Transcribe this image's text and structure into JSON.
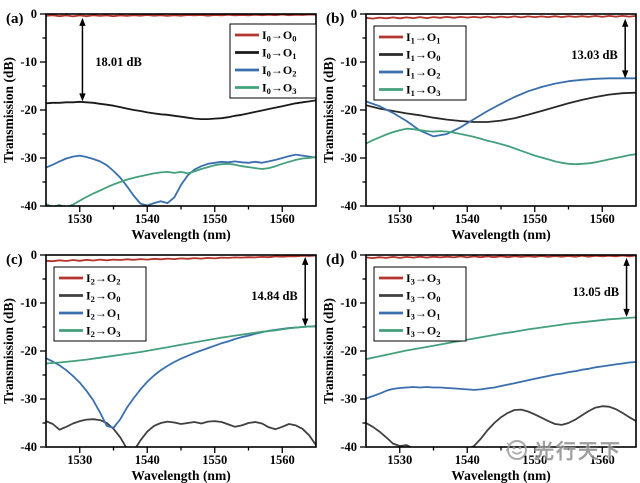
{
  "figure": {
    "background": "#ffffff",
    "watermark": {
      "text": "光行天下",
      "logo": "smiley-circle-icon",
      "color": "#8f8f8f"
    }
  },
  "chart_data": [
    {
      "type": "line",
      "panel_label": "(a)",
      "xlabel": "Wavelength (nm)",
      "ylabel": "Transmission (dB)",
      "xlim": [
        1525,
        1565
      ],
      "ylim": [
        -40,
        0
      ],
      "x_ticks": [
        1530,
        1540,
        1550,
        1560
      ],
      "x_minor_ticks": [
        1535,
        1545,
        1555
      ],
      "y_ticks": [
        0,
        -10,
        -20,
        -30,
        -40
      ],
      "y_minor_ticks": [
        -5,
        -15,
        -25,
        -35
      ],
      "grid": false,
      "legend_position": "top-right",
      "annotation": {
        "text": "18.01 dB",
        "arrow_x_nm": 1530.4,
        "arrow_from_db": -0.8,
        "arrow_to_db": -18.2,
        "text_x_nm": 1532.3,
        "text_y_db": -10,
        "text_anchor": "start"
      },
      "series": [
        {
          "name": "I0→O0",
          "in_base": "I",
          "in_sub": "0",
          "out_base": "O",
          "out_sub": "0",
          "color": "#b5342c",
          "x_start": 1525,
          "x_step": 1,
          "y": [
            -0.4,
            -0.25,
            -0.45,
            -0.3,
            -0.5,
            -0.3,
            -0.45,
            -0.25,
            -0.4,
            -0.3,
            -0.45,
            -0.3,
            -0.4,
            -0.25,
            -0.35,
            -0.2,
            -0.35,
            -0.25,
            -0.4,
            -0.25,
            -0.35,
            -0.2,
            -0.3,
            -0.2,
            -0.35,
            -0.2,
            -0.3,
            -0.15,
            -0.3,
            -0.2,
            -0.3,
            -0.15,
            -0.25,
            -0.15,
            -0.25,
            -0.1,
            -0.25,
            -0.15,
            -0.2,
            -0.1,
            -0.15
          ]
        },
        {
          "name": "I0→O1",
          "in_base": "I",
          "in_sub": "0",
          "out_base": "O",
          "out_sub": "1",
          "color": "#1a1a1a",
          "x_start": 1525,
          "x_step": 1,
          "y": [
            -18.6,
            -18.5,
            -18.5,
            -18.4,
            -18.4,
            -18.3,
            -18.4,
            -18.5,
            -18.7,
            -18.9,
            -19.1,
            -19.4,
            -19.7,
            -20.0,
            -20.2,
            -20.5,
            -20.7,
            -20.9,
            -21.0,
            -21.2,
            -21.4,
            -21.6,
            -21.8,
            -21.9,
            -21.9,
            -21.8,
            -21.7,
            -21.5,
            -21.2,
            -21.0,
            -20.7,
            -20.4,
            -20.1,
            -19.8,
            -19.5,
            -19.2,
            -18.9,
            -18.6,
            -18.4,
            -18.2,
            -18.0
          ]
        },
        {
          "name": "I0→O2",
          "in_base": "I",
          "in_sub": "0",
          "out_base": "O",
          "out_sub": "2",
          "color": "#3a6fae",
          "x_start": 1525,
          "x_step": 1,
          "y": [
            -32.0,
            -31.4,
            -30.7,
            -30.1,
            -29.7,
            -29.5,
            -29.8,
            -30.2,
            -30.7,
            -31.5,
            -32.7,
            -34.1,
            -35.9,
            -37.9,
            -39.5,
            -39.9,
            -39.4,
            -39.0,
            -39.4,
            -38.2,
            -35.6,
            -33.6,
            -32.4,
            -31.7,
            -31.2,
            -31.0,
            -30.8,
            -30.9,
            -30.7,
            -30.9,
            -31.0,
            -30.8,
            -31.0,
            -30.7,
            -30.4,
            -30.0,
            -29.6,
            -29.3,
            -29.5,
            -29.7,
            -29.9
          ]
        },
        {
          "name": "I0→O3",
          "in_base": "I",
          "in_sub": "0",
          "out_base": "O",
          "out_sub": "3",
          "color": "#44a07c",
          "x_start": 1525,
          "x_step": 1,
          "y": [
            -39.6,
            -40.2,
            -39.8,
            -40.3,
            -39.7,
            -38.9,
            -38.1,
            -37.4,
            -36.8,
            -36.1,
            -35.5,
            -35.0,
            -34.5,
            -34.1,
            -33.8,
            -33.5,
            -33.2,
            -33.0,
            -32.9,
            -33.1,
            -32.9,
            -33.2,
            -32.8,
            -32.3,
            -31.9,
            -31.5,
            -31.3,
            -31.2,
            -31.4,
            -31.7,
            -31.9,
            -32.1,
            -32.3,
            -32.1,
            -31.7,
            -31.2,
            -30.8,
            -30.4,
            -30.1,
            -30.0,
            -29.8
          ]
        }
      ]
    },
    {
      "type": "line",
      "panel_label": "(b)",
      "xlabel": "Wavelength (nm)",
      "ylabel": "Transmission (dB)",
      "xlim": [
        1525,
        1565
      ],
      "ylim": [
        -40,
        0
      ],
      "x_ticks": [
        1530,
        1540,
        1550,
        1560
      ],
      "x_minor_ticks": [
        1535,
        1545,
        1555
      ],
      "y_ticks": [
        0,
        -10,
        -20,
        -30,
        -40
      ],
      "y_minor_ticks": [
        -5,
        -15,
        -25,
        -35
      ],
      "grid": false,
      "legend_position": "top-left",
      "annotation": {
        "text": "13.03 dB",
        "arrow_x_nm": 1563.4,
        "arrow_from_db": -1.0,
        "arrow_to_db": -13.4,
        "text_x_nm": 1562.3,
        "text_y_db": -8.5,
        "text_anchor": "end"
      },
      "series": [
        {
          "name": "I1→O1",
          "in_base": "I",
          "in_sub": "1",
          "out_base": "O",
          "out_sub": "1",
          "color": "#b5342c",
          "x_start": 1525,
          "x_step": 1,
          "y": [
            -0.8,
            -0.95,
            -0.75,
            -0.9,
            -0.7,
            -0.9,
            -0.7,
            -0.85,
            -0.65,
            -0.85,
            -0.65,
            -0.8,
            -0.6,
            -0.8,
            -0.6,
            -0.75,
            -0.6,
            -0.75,
            -0.55,
            -0.75,
            -0.55,
            -0.7,
            -0.5,
            -0.7,
            -0.5,
            -0.65,
            -0.5,
            -0.65,
            -0.45,
            -0.65,
            -0.45,
            -0.6,
            -0.45,
            -0.6,
            -0.4,
            -0.6,
            -0.4,
            -0.55,
            -0.4,
            -0.55,
            -0.4
          ]
        },
        {
          "name": "I1→O0",
          "in_base": "I",
          "in_sub": "1",
          "out_base": "O",
          "out_sub": "0",
          "color": "#2a2a2a",
          "x_start": 1525,
          "x_step": 2,
          "y": [
            -19.0,
            -19.7,
            -20.2,
            -20.7,
            -21.1,
            -21.6,
            -22.0,
            -22.3,
            -22.5,
            -22.5,
            -22.2,
            -21.7,
            -21.0,
            -20.2,
            -19.4,
            -18.6,
            -17.9,
            -17.3,
            -16.8,
            -16.5,
            -16.4
          ]
        },
        {
          "name": "I1→O2",
          "in_base": "I",
          "in_sub": "1",
          "out_base": "O",
          "out_sub": "2",
          "color": "#3a6fae",
          "x_start": 1525,
          "x_step": 2,
          "y": [
            -18.2,
            -19.2,
            -20.6,
            -22.3,
            -24.3,
            -25.5,
            -25.0,
            -23.6,
            -21.9,
            -20.2,
            -18.7,
            -17.3,
            -16.1,
            -15.2,
            -14.5,
            -14.0,
            -13.7,
            -13.5,
            -13.4,
            -13.4,
            -13.4
          ]
        },
        {
          "name": "I1→O3",
          "in_base": "I",
          "in_sub": "1",
          "out_base": "O",
          "out_sub": "3",
          "color": "#44a07c",
          "x_start": 1525,
          "x_step": 1,
          "y": [
            -27.0,
            -26.3,
            -25.7,
            -25.1,
            -24.6,
            -24.2,
            -23.9,
            -24.0,
            -24.2,
            -24.4,
            -24.5,
            -24.4,
            -24.5,
            -24.7,
            -25.0,
            -25.3,
            -25.6,
            -26.0,
            -26.4,
            -26.7,
            -27.1,
            -27.5,
            -28.0,
            -28.5,
            -29.0,
            -29.5,
            -29.9,
            -30.3,
            -30.7,
            -31.0,
            -31.2,
            -31.3,
            -31.2,
            -31.1,
            -30.9,
            -30.6,
            -30.3,
            -30.0,
            -29.7,
            -29.4,
            -29.2
          ]
        }
      ]
    },
    {
      "type": "line",
      "panel_label": "(c)",
      "xlabel": "Wavelength (nm)",
      "ylabel": "Transmission (dB)",
      "xlim": [
        1525,
        1565
      ],
      "ylim": [
        -40,
        0
      ],
      "x_ticks": [
        1530,
        1540,
        1550,
        1560
      ],
      "x_minor_ticks": [
        1535,
        1545,
        1555
      ],
      "y_ticks": [
        0,
        -10,
        -20,
        -30,
        -40
      ],
      "y_minor_ticks": [
        -5,
        -15,
        -25,
        -35
      ],
      "grid": false,
      "legend_position": "top-left",
      "annotation": {
        "text": "14.84 dB",
        "arrow_x_nm": 1563.4,
        "arrow_from_db": -0.4,
        "arrow_to_db": -14.9,
        "text_x_nm": 1562.3,
        "text_y_db": -8.5,
        "text_anchor": "end"
      },
      "series": [
        {
          "name": "I2→O2",
          "in_base": "I",
          "in_sub": "2",
          "out_base": "O",
          "out_sub": "2",
          "color": "#b5342c",
          "x_start": 1525,
          "x_step": 1,
          "y": [
            -1.2,
            -1.3,
            -1.1,
            -1.25,
            -1.05,
            -1.2,
            -1.0,
            -1.15,
            -0.95,
            -1.1,
            -0.95,
            -1.05,
            -0.9,
            -1.0,
            -0.85,
            -0.95,
            -0.8,
            -0.9,
            -0.75,
            -0.85,
            -0.7,
            -0.8,
            -0.65,
            -0.75,
            -0.6,
            -0.7,
            -0.55,
            -0.6,
            -0.5,
            -0.55,
            -0.45,
            -0.5,
            -0.4,
            -0.45,
            -0.3,
            -0.35,
            -0.25,
            -0.3,
            -0.15,
            -0.2,
            -0.1
          ]
        },
        {
          "name": "I2→O0",
          "in_base": "I",
          "in_sub": "2",
          "out_base": "O",
          "out_sub": "0",
          "color": "#404040",
          "x_start": 1525,
          "x_step": 1,
          "y": [
            -34.6,
            -35.2,
            -36.4,
            -35.8,
            -35.1,
            -34.6,
            -34.3,
            -34.2,
            -34.4,
            -35.0,
            -36.2,
            -38.0,
            -40.4,
            -40.8,
            -38.6,
            -36.8,
            -35.6,
            -35.0,
            -34.7,
            -34.9,
            -35.2,
            -35.0,
            -34.8,
            -35.1,
            -34.7,
            -34.6,
            -34.8,
            -35.3,
            -35.8,
            -35.5,
            -35.0,
            -34.8,
            -35.1,
            -35.9,
            -36.3,
            -35.8,
            -35.2,
            -35.5,
            -36.2,
            -37.6,
            -39.6
          ]
        },
        {
          "name": "I2→O1",
          "in_base": "I",
          "in_sub": "2",
          "out_base": "O",
          "out_sub": "1",
          "color": "#3a6fae",
          "x_start": 1525,
          "x_step": 1,
          "y": [
            -21.5,
            -22.2,
            -23.0,
            -24.0,
            -25.2,
            -26.6,
            -28.3,
            -30.3,
            -32.8,
            -35.6,
            -36.0,
            -34.2,
            -31.8,
            -29.8,
            -28.0,
            -26.4,
            -25.1,
            -24.0,
            -23.1,
            -22.3,
            -21.6,
            -21.0,
            -20.4,
            -19.9,
            -19.4,
            -18.9,
            -18.4,
            -18.0,
            -17.5,
            -17.1,
            -16.8,
            -16.4,
            -16.1,
            -15.8,
            -15.6,
            -15.4,
            -15.2,
            -15.1,
            -15.0,
            -14.9,
            -14.9
          ]
        },
        {
          "name": "I2→O3",
          "in_base": "I",
          "in_sub": "2",
          "out_base": "O",
          "out_sub": "3",
          "color": "#44a07c",
          "x_start": 1525,
          "x_step": 2,
          "y": [
            -22.6,
            -22.4,
            -22.1,
            -21.8,
            -21.4,
            -21.0,
            -20.6,
            -20.2,
            -19.7,
            -19.2,
            -18.7,
            -18.2,
            -17.7,
            -17.2,
            -16.8,
            -16.4,
            -16.0,
            -15.7,
            -15.3,
            -15.0,
            -14.8
          ]
        }
      ]
    },
    {
      "type": "line",
      "panel_label": "(d)",
      "xlabel": "Wavelength (nm)",
      "ylabel": "Transmission (dB)",
      "xlim": [
        1525,
        1565
      ],
      "ylim": [
        -40,
        0
      ],
      "x_ticks": [
        1530,
        1540,
        1550,
        1560
      ],
      "x_minor_ticks": [
        1535,
        1545,
        1555
      ],
      "y_ticks": [
        0,
        -10,
        -20,
        -30,
        -40
      ],
      "y_minor_ticks": [
        -5,
        -15,
        -25,
        -35
      ],
      "grid": false,
      "legend_position": "top-left",
      "annotation": {
        "text": "13.05 dB",
        "arrow_x_nm": 1563.6,
        "arrow_from_db": -0.6,
        "arrow_to_db": -12.9,
        "text_x_nm": 1562.5,
        "text_y_db": -7.7,
        "text_anchor": "end"
      },
      "series": [
        {
          "name": "I3→O3",
          "in_base": "I",
          "in_sub": "3",
          "out_base": "O",
          "out_sub": "3",
          "color": "#b5342c",
          "x_start": 1525,
          "x_step": 1,
          "y": [
            -0.5,
            -0.65,
            -0.45,
            -0.6,
            -0.4,
            -0.6,
            -0.4,
            -0.55,
            -0.35,
            -0.55,
            -0.35,
            -0.5,
            -0.35,
            -0.5,
            -0.3,
            -0.5,
            -0.3,
            -0.45,
            -0.3,
            -0.45,
            -0.25,
            -0.45,
            -0.25,
            -0.4,
            -0.25,
            -0.4,
            -0.2,
            -0.4,
            -0.2,
            -0.35,
            -0.2,
            -0.35,
            -0.15,
            -0.35,
            -0.15,
            -0.3,
            -0.15,
            -0.3,
            -0.1,
            -0.3,
            -0.1
          ]
        },
        {
          "name": "I3→O0",
          "in_base": "I",
          "in_sub": "3",
          "out_base": "O",
          "out_sub": "0",
          "color": "#404040",
          "x_start": 1525,
          "x_step": 1,
          "y": [
            -35.0,
            -35.8,
            -36.8,
            -38.0,
            -39.3,
            -39.8,
            -39.6,
            -40.3,
            -41.2,
            -41.6,
            -41.8,
            -41.8,
            -41.6,
            -41.4,
            -41.0,
            -40.5,
            -39.8,
            -38.3,
            -36.5,
            -35.0,
            -33.8,
            -32.9,
            -32.3,
            -32.2,
            -32.6,
            -33.2,
            -33.9,
            -34.6,
            -35.2,
            -35.4,
            -35.0,
            -34.3,
            -33.4,
            -32.5,
            -31.8,
            -31.5,
            -31.6,
            -32.1,
            -32.9,
            -33.8,
            -34.6
          ]
        },
        {
          "name": "I3→O1",
          "in_base": "I",
          "in_sub": "3",
          "out_base": "O",
          "out_sub": "1",
          "color": "#3a6fae",
          "x_start": 1525,
          "x_step": 1,
          "y": [
            -29.9,
            -29.4,
            -28.9,
            -28.3,
            -27.9,
            -27.7,
            -27.6,
            -27.5,
            -27.6,
            -27.5,
            -27.6,
            -27.6,
            -27.7,
            -27.8,
            -27.9,
            -28.0,
            -28.1,
            -28.0,
            -27.8,
            -27.6,
            -27.3,
            -27.0,
            -26.7,
            -26.4,
            -26.1,
            -25.8,
            -25.5,
            -25.2,
            -24.9,
            -24.7,
            -24.4,
            -24.2,
            -23.9,
            -23.7,
            -23.4,
            -23.2,
            -23.0,
            -22.8,
            -22.6,
            -22.4,
            -22.3
          ]
        },
        {
          "name": "I3→O2",
          "in_base": "I",
          "in_sub": "3",
          "out_base": "O",
          "out_sub": "2",
          "color": "#44a07c",
          "x_start": 1525,
          "x_step": 2,
          "y": [
            -21.7,
            -21.1,
            -20.5,
            -19.9,
            -19.4,
            -18.9,
            -18.4,
            -17.9,
            -17.4,
            -16.9,
            -16.4,
            -16.0,
            -15.5,
            -15.1,
            -14.7,
            -14.3,
            -14.0,
            -13.7,
            -13.4,
            -13.2,
            -13.0
          ]
        }
      ]
    }
  ]
}
